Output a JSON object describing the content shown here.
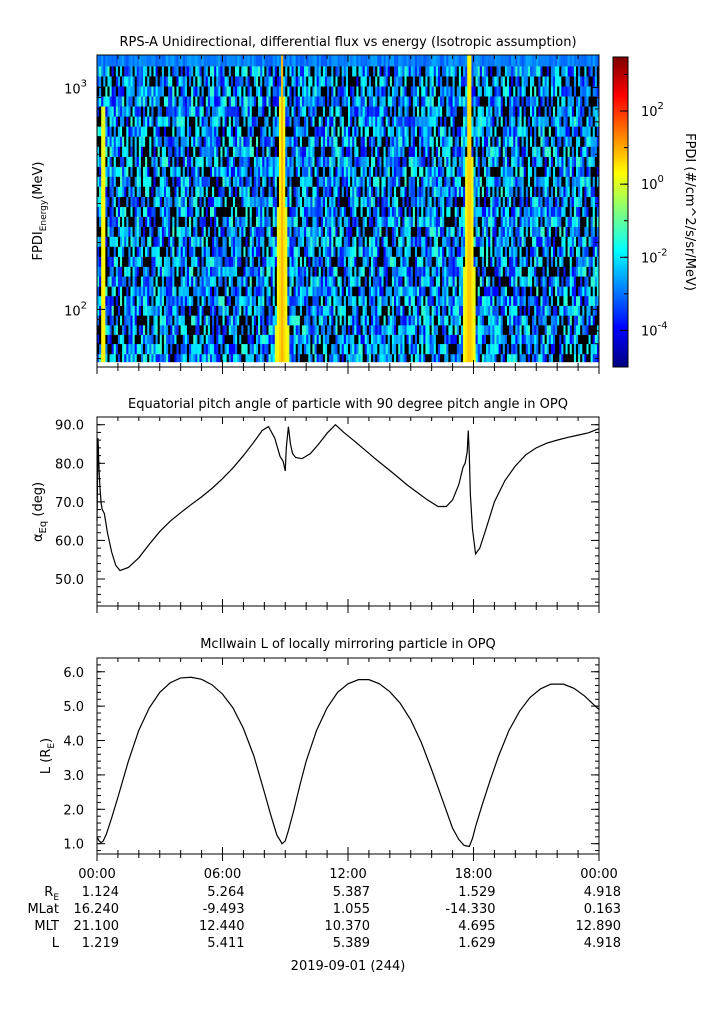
{
  "chart_data": [
    {
      "type": "heatmap",
      "title": "RPS-A Unidirectional, differential flux vs energy (Isotropic assumption)",
      "ylabel_main": "FPDI",
      "ylabel_sub": "Energy",
      "ylabel_unit": "(MeV)",
      "ylog": true,
      "ylim": [
        55,
        1400
      ],
      "yticks": [
        {
          "value": 100,
          "base": "10",
          "exp": "2"
        },
        {
          "value": 1000,
          "base": "10",
          "exp": "3"
        }
      ],
      "xlim_hours": [
        0,
        24
      ],
      "colorbar": {
        "label": "FPDI (#/cm^2/s/sr/MeV)",
        "log": true,
        "range": [
          1e-05,
          3000
        ],
        "ticks": [
          {
            "value": 0.0001,
            "base": "10",
            "exp": "-4"
          },
          {
            "value": 0.01,
            "base": "10",
            "exp": "-2"
          },
          {
            "value": 1,
            "base": "10",
            "exp": "0"
          },
          {
            "value": 100,
            "base": "10",
            "exp": "2"
          }
        ],
        "colors": [
          "#00007f",
          "#0000ff",
          "#007fff",
          "#00ffff",
          "#7fff7f",
          "#ffff00",
          "#ff7f00",
          "#ff0000",
          "#7f0000"
        ]
      },
      "energy_channels_mev": [
        58,
        63,
        70,
        77,
        85,
        94,
        104,
        115,
        127,
        141,
        156,
        173,
        192,
        213,
        236,
        262,
        290,
        322,
        358,
        397,
        440,
        488,
        542,
        602,
        668,
        741,
        823,
        913,
        1013,
        1124,
        1248,
        1400
      ],
      "flux_bands": [
        {
          "center_hour": 0.3,
          "width_low": 0.35,
          "width_high": 0.1,
          "peak_flux": 5
        },
        {
          "center_hour": 8.85,
          "width_low": 0.8,
          "width_high": 0.15,
          "peak_flux": 8
        },
        {
          "center_hour": 17.8,
          "width_low": 0.8,
          "width_high": 0.15,
          "peak_flux": 8
        }
      ],
      "background_flux_range": [
        0.0001,
        0.05
      ]
    },
    {
      "type": "line",
      "title": "Equatorial pitch angle of particle with 90 degree pitch angle in OPQ",
      "ylabel_main": "α",
      "ylabel_sub": "Eq",
      "ylabel_unit": "(deg)",
      "ylim": [
        43,
        92
      ],
      "yticks": [
        50,
        60,
        70,
        80,
        90
      ],
      "xlim_hours": [
        0,
        24
      ],
      "series": [
        {
          "x": [
            0.0,
            0.05,
            0.1,
            0.15,
            0.2,
            0.25,
            0.35,
            0.5,
            0.7,
            0.9,
            1.1,
            1.5,
            2.0,
            2.5,
            3.0,
            3.5,
            4.0,
            4.5,
            5.0,
            5.5,
            6.0,
            6.5,
            7.0,
            7.5,
            7.9,
            8.2,
            8.5,
            8.75,
            8.9,
            9.0,
            9.05,
            9.15,
            9.25,
            9.35,
            9.5,
            9.8,
            10.2,
            10.6,
            11.0,
            11.4,
            11.8,
            12.3,
            12.8,
            13.3,
            13.8,
            14.3,
            14.8,
            15.3,
            15.8,
            16.3,
            16.7,
            17.0,
            17.3,
            17.5,
            17.6,
            17.7,
            17.75,
            17.8,
            17.85,
            17.95,
            18.1,
            18.3,
            18.6,
            19.0,
            19.5,
            20.0,
            20.5,
            21.0,
            21.5,
            22.0,
            22.5,
            23.0,
            23.5,
            24.0
          ],
          "y": [
            65,
            86.5,
            78,
            73,
            69.5,
            68,
            67,
            62,
            57,
            53.5,
            52.2,
            53,
            55.5,
            59,
            62.3,
            65,
            67.2,
            69.3,
            71.3,
            73.5,
            76,
            78.8,
            82,
            85.5,
            88.5,
            89.5,
            86.5,
            81.8,
            80.5,
            78,
            84,
            89.5,
            85,
            82.5,
            81.5,
            81.2,
            82.5,
            85,
            87.8,
            90,
            88,
            85.8,
            83.5,
            81.2,
            79,
            76.8,
            74.5,
            72.5,
            70.5,
            68.8,
            68.8,
            70.5,
            74.5,
            79,
            80,
            83,
            88.5,
            82,
            72,
            63,
            56.5,
            58,
            63,
            70,
            75.5,
            79.3,
            82.2,
            84,
            85.2,
            86,
            86.7,
            87.3,
            87.9,
            89
          ]
        }
      ]
    },
    {
      "type": "line",
      "title": "McIlwain L of locally mirroring particle in OPQ",
      "ylabel_main": "L (R",
      "ylabel_sub": "E",
      "ylabel_unit": ")",
      "ylim": [
        0.7,
        6.4
      ],
      "yticks": [
        1,
        2,
        3,
        4,
        5,
        6
      ],
      "xlim_hours": [
        0,
        24
      ],
      "series": [
        {
          "x": [
            0.0,
            0.1,
            0.2,
            0.3,
            0.45,
            0.7,
            1.0,
            1.5,
            2.0,
            2.5,
            3.0,
            3.5,
            4.0,
            4.5,
            5.0,
            5.5,
            6.0,
            6.5,
            7.0,
            7.5,
            8.0,
            8.3,
            8.6,
            8.85,
            9.0,
            9.15,
            9.4,
            9.7,
            10.0,
            10.5,
            11.0,
            11.5,
            12.0,
            12.5,
            13.0,
            13.5,
            14.0,
            14.5,
            15.0,
            15.5,
            16.0,
            16.5,
            17.0,
            17.3,
            17.55,
            17.8,
            17.95,
            18.1,
            18.4,
            18.8,
            19.2,
            19.7,
            20.2,
            20.7,
            21.2,
            21.7,
            22.3,
            22.8,
            23.3,
            23.7,
            24.0
          ],
          "y": [
            1.2,
            1.08,
            1.03,
            1.08,
            1.28,
            1.75,
            2.35,
            3.4,
            4.3,
            4.95,
            5.4,
            5.68,
            5.82,
            5.84,
            5.78,
            5.62,
            5.35,
            4.95,
            4.35,
            3.55,
            2.5,
            1.85,
            1.25,
            1.0,
            1.08,
            1.38,
            1.95,
            2.7,
            3.4,
            4.3,
            4.95,
            5.4,
            5.65,
            5.77,
            5.77,
            5.65,
            5.42,
            5.08,
            4.6,
            3.95,
            3.15,
            2.3,
            1.45,
            1.12,
            0.95,
            0.92,
            1.15,
            1.5,
            2.1,
            2.85,
            3.55,
            4.3,
            4.85,
            5.25,
            5.5,
            5.64,
            5.64,
            5.52,
            5.3,
            5.07,
            4.9
          ]
        }
      ]
    }
  ],
  "time_axis": {
    "tick_labels": [
      "00:00",
      "06:00",
      "12:00",
      "18:00",
      "00:00"
    ],
    "tick_hours": [
      0,
      6,
      12,
      18,
      24
    ],
    "date_label": "2019-09-01 (244)"
  },
  "ephemeris": {
    "rows": [
      {
        "label": "R",
        "sub": "E",
        "values": [
          "1.124",
          "5.264",
          "5.387",
          "1.529",
          "4.918"
        ]
      },
      {
        "label": "MLat",
        "sub": "",
        "values": [
          "16.240",
          "-9.493",
          "1.055",
          "-14.330",
          "0.163"
        ]
      },
      {
        "label": "MLT",
        "sub": "",
        "values": [
          "21.100",
          "12.440",
          "10.370",
          "4.695",
          "12.890"
        ]
      },
      {
        "label": "L",
        "sub": "",
        "values": [
          "1.219",
          "5.411",
          "5.389",
          "1.629",
          "4.918"
        ]
      }
    ]
  }
}
